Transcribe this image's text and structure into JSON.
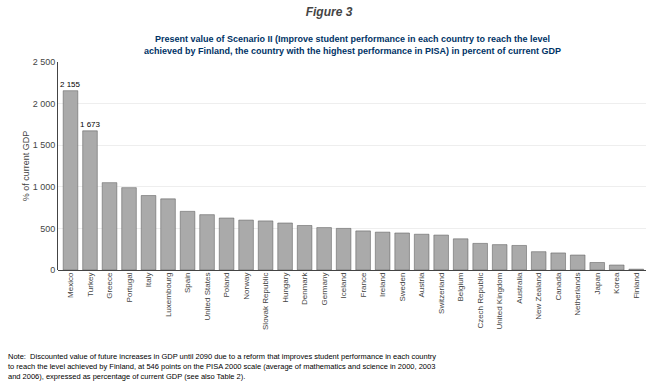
{
  "chart_data": {
    "type": "bar",
    "title": "Figure 3",
    "subtitle": "Present value of Scenario II (Improve student performance in each country to reach the level\nachieved by Finland, the country with the highest performance in PISA) in percent of current GDP",
    "ylabel": "% of current GDP",
    "note": "Note:  Discounted value of future increases in GDP until 2090 due to a reform that improves student performance in each country\nto reach the level achieved by Finland, at 546 points on the PISA 2000 scale (average of mathematics and science in 2000, 2003\nand 2006), expressed as percentage of current GDP (see also Table 2).",
    "categories": [
      "Mexico",
      "Turkey",
      "Greece",
      "Portugal",
      "Italy",
      "Luxembourg",
      "Spain",
      "United States",
      "Poland",
      "Norway",
      "Slovak Republic",
      "Hungary",
      "Denmark",
      "Germany",
      "Iceland",
      "France",
      "Ireland",
      "Sweden",
      "Austria",
      "Switzerland",
      "Belgium",
      "Czech Republic",
      "United Kingdom",
      "Australia",
      "New Zealand",
      "Canada",
      "Netherlands",
      "Japan",
      "Korea",
      "Finland"
    ],
    "values": [
      2155,
      1673,
      1050,
      990,
      895,
      855,
      705,
      665,
      625,
      600,
      590,
      565,
      535,
      510,
      500,
      470,
      455,
      445,
      430,
      420,
      375,
      320,
      305,
      295,
      220,
      205,
      180,
      90,
      60,
      10
    ],
    "color": "#aaaaaa",
    "annotations": [
      {
        "category": "Mexico",
        "text": "2 155"
      },
      {
        "category": "Turkey",
        "text": "1 673"
      }
    ],
    "ylim": [
      0,
      2500
    ],
    "yticks": [
      0,
      500,
      {
        "value": 1000,
        "label": "1 000"
      },
      {
        "value": 1500,
        "label": "1 500"
      },
      {
        "value": 2000,
        "label": "2 000"
      },
      {
        "value": 2500,
        "label": "2 500"
      }
    ],
    "grid": true
  }
}
